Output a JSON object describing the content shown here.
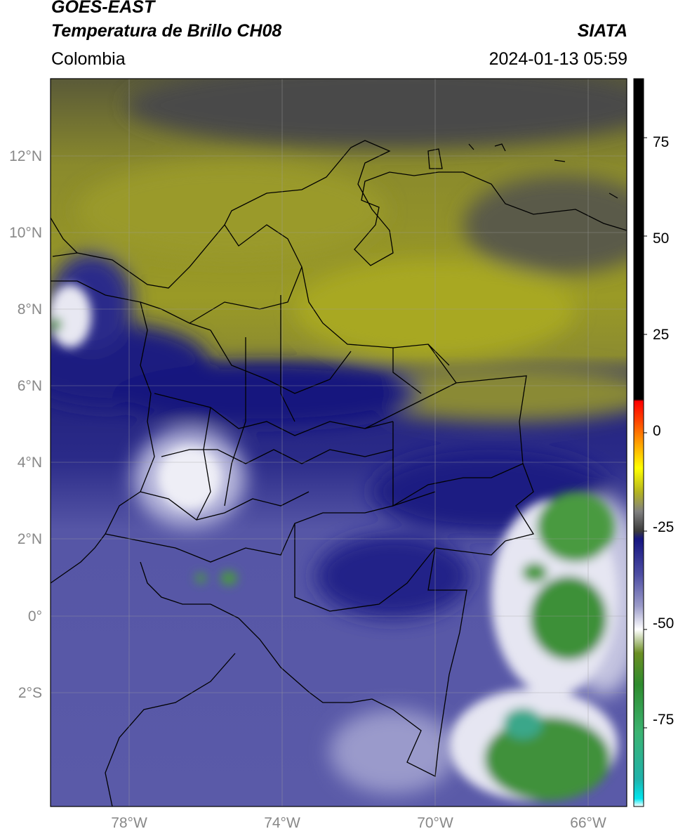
{
  "header": {
    "satellite": "GOES-EAST",
    "product": "Temperatura de Brillo CH08",
    "org": "SIATA",
    "region": "Colombia",
    "datetime": "2024-01-13 05:59"
  },
  "map_axes": {
    "lon_range": [
      -80,
      -65
    ],
    "lat_range": [
      -5,
      14
    ],
    "lat_ticks": [
      "12°N",
      "10°N",
      "8°N",
      "6°N",
      "4°N",
      "2°N",
      "0°",
      "2°S"
    ],
    "lon_ticks": [
      "78°W",
      "74°W",
      "70°W",
      "66°W"
    ]
  },
  "colorbar": {
    "range": [
      -95,
      90
    ],
    "ticks": [
      "75",
      "50",
      "25",
      "0",
      "-25",
      "-50",
      "-75"
    ],
    "stops": [
      {
        "v": -95,
        "c": "#ffffff"
      },
      {
        "v": -93,
        "c": "#00e5ee"
      },
      {
        "v": -88,
        "c": "#20b2aa"
      },
      {
        "v": -76,
        "c": "#3cb371"
      },
      {
        "v": -64,
        "c": "#2e8b2e"
      },
      {
        "v": -56,
        "c": "#6b8e23"
      },
      {
        "v": -50,
        "c": "#ffffff"
      },
      {
        "v": -44,
        "c": "#9a9ac8"
      },
      {
        "v": -36,
        "c": "#4d4da3"
      },
      {
        "v": -27,
        "c": "#151580"
      },
      {
        "v": -25,
        "c": "#3a3a3a"
      },
      {
        "v": -20,
        "c": "#808080"
      },
      {
        "v": -15,
        "c": "#b5b520"
      },
      {
        "v": -9,
        "c": "#ffff00"
      },
      {
        "v": -3,
        "c": "#ffa500"
      },
      {
        "v": 3,
        "c": "#ff4500"
      },
      {
        "v": 8,
        "c": "#ff0000"
      },
      {
        "v": 8.5,
        "c": "#000000"
      },
      {
        "v": 90,
        "c": "#000000"
      }
    ]
  },
  "colors": {
    "dry_north": "#8a8a28",
    "dry_yellow": "#a5a524",
    "dark_top": "#4a4a4a",
    "deep_blue": "#16167e",
    "mid_blue": "#4a4aa0",
    "light_blue": "#7878b6",
    "cloud_white": "#f0f0f8",
    "cold_green": "#3f8f3a"
  }
}
